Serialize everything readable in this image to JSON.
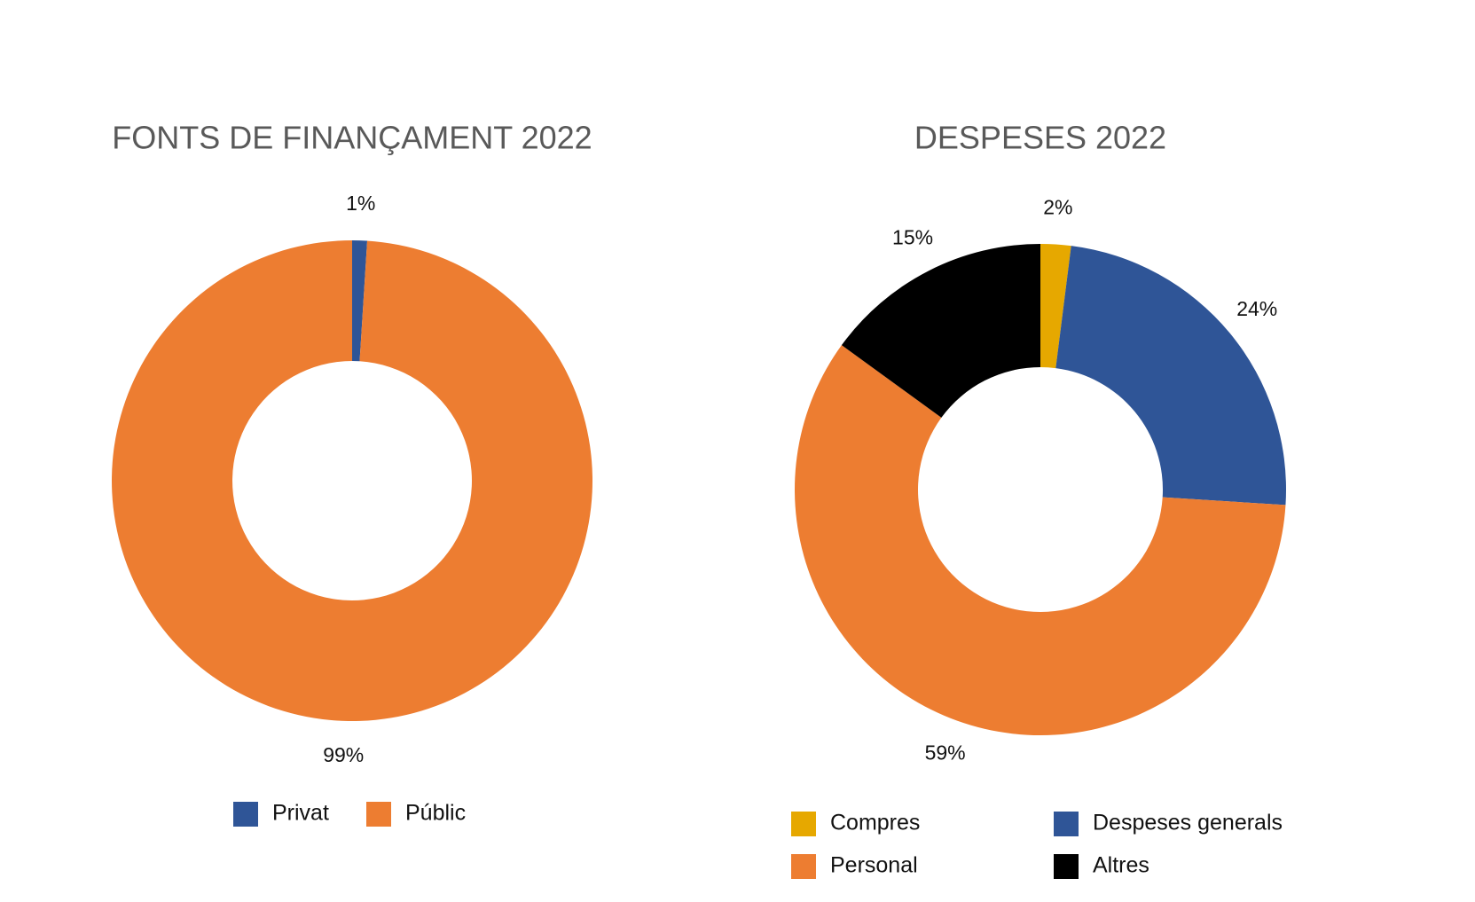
{
  "chart_data": [
    {
      "type": "donut",
      "title": "FONTS DE FINANÇAMENT 2022",
      "categories": [
        "Privat",
        "Públic"
      ],
      "values": [
        1,
        99
      ],
      "value_labels": [
        "1%",
        "99%"
      ],
      "colors": [
        "#2f5597",
        "#ed7d31"
      ],
      "legend": "bottom"
    },
    {
      "type": "donut",
      "title": "DESPESES 2022",
      "categories": [
        "Compres",
        "Despeses generals",
        "Personal",
        "Altres"
      ],
      "values": [
        2,
        24,
        59,
        15
      ],
      "value_labels": [
        "2%",
        "24%",
        "59%",
        "15%"
      ],
      "colors": [
        "#e6a800",
        "#2f5597",
        "#ed7d31",
        "#000000"
      ],
      "legend": "bottom"
    }
  ]
}
